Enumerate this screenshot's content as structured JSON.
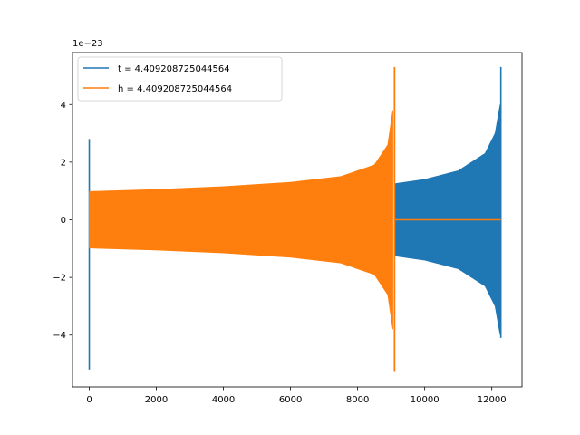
{
  "chart_data": {
    "type": "line",
    "title": "",
    "xlabel": "",
    "ylabel": "",
    "y_scale_label": "1e−23",
    "xlim": [
      -500,
      12900
    ],
    "ylim": [
      -5.8,
      5.8
    ],
    "x_ticks": [
      0,
      2000,
      4000,
      6000,
      8000,
      10000,
      12000
    ],
    "x_tick_labels": [
      "0",
      "2000",
      "4000",
      "6000",
      "8000",
      "10000",
      "12000"
    ],
    "y_ticks": [
      -4,
      -2,
      0,
      2,
      4
    ],
    "y_tick_labels": [
      "−4",
      "−2",
      "0",
      "2",
      "4"
    ],
    "legend": {
      "placement": "top-left"
    },
    "colors": {
      "t": "#1f77b4",
      "h": "#ff7f0e"
    },
    "series": [
      {
        "name": "t = 4.409208725044564",
        "color": "#1f77b4",
        "description_points": {
          "spike_x": 0,
          "spike_max": 2.8,
          "spike_min": -5.2,
          "envelope": [
            {
              "x": 9100,
              "amp": 1.25
            },
            {
              "x": 10000,
              "amp": 1.4
            },
            {
              "x": 11000,
              "amp": 1.7
            },
            {
              "x": 11800,
              "amp": 2.3
            },
            {
              "x": 12100,
              "amp": 3.0
            },
            {
              "x": 12250,
              "amp": 4.0
            }
          ],
          "end_x": 12270,
          "end_max": 5.3,
          "end_min": -4.1
        }
      },
      {
        "name": "h = 4.409208725044564",
        "color": "#ff7f0e",
        "description_points": {
          "start_x": 0,
          "envelope": [
            {
              "x": 0,
              "amp": 0.98
            },
            {
              "x": 2000,
              "amp": 1.05
            },
            {
              "x": 4000,
              "amp": 1.15
            },
            {
              "x": 6000,
              "amp": 1.3
            },
            {
              "x": 7500,
              "amp": 1.5
            },
            {
              "x": 8500,
              "amp": 1.9
            },
            {
              "x": 8900,
              "amp": 2.6
            },
            {
              "x": 9050,
              "amp": 3.8
            }
          ],
          "peak_x": 9100,
          "peak_max": 5.3,
          "peak_min": -5.25,
          "flat_start": 9100,
          "flat_end": 12270,
          "flat_value": 0
        }
      }
    ]
  }
}
